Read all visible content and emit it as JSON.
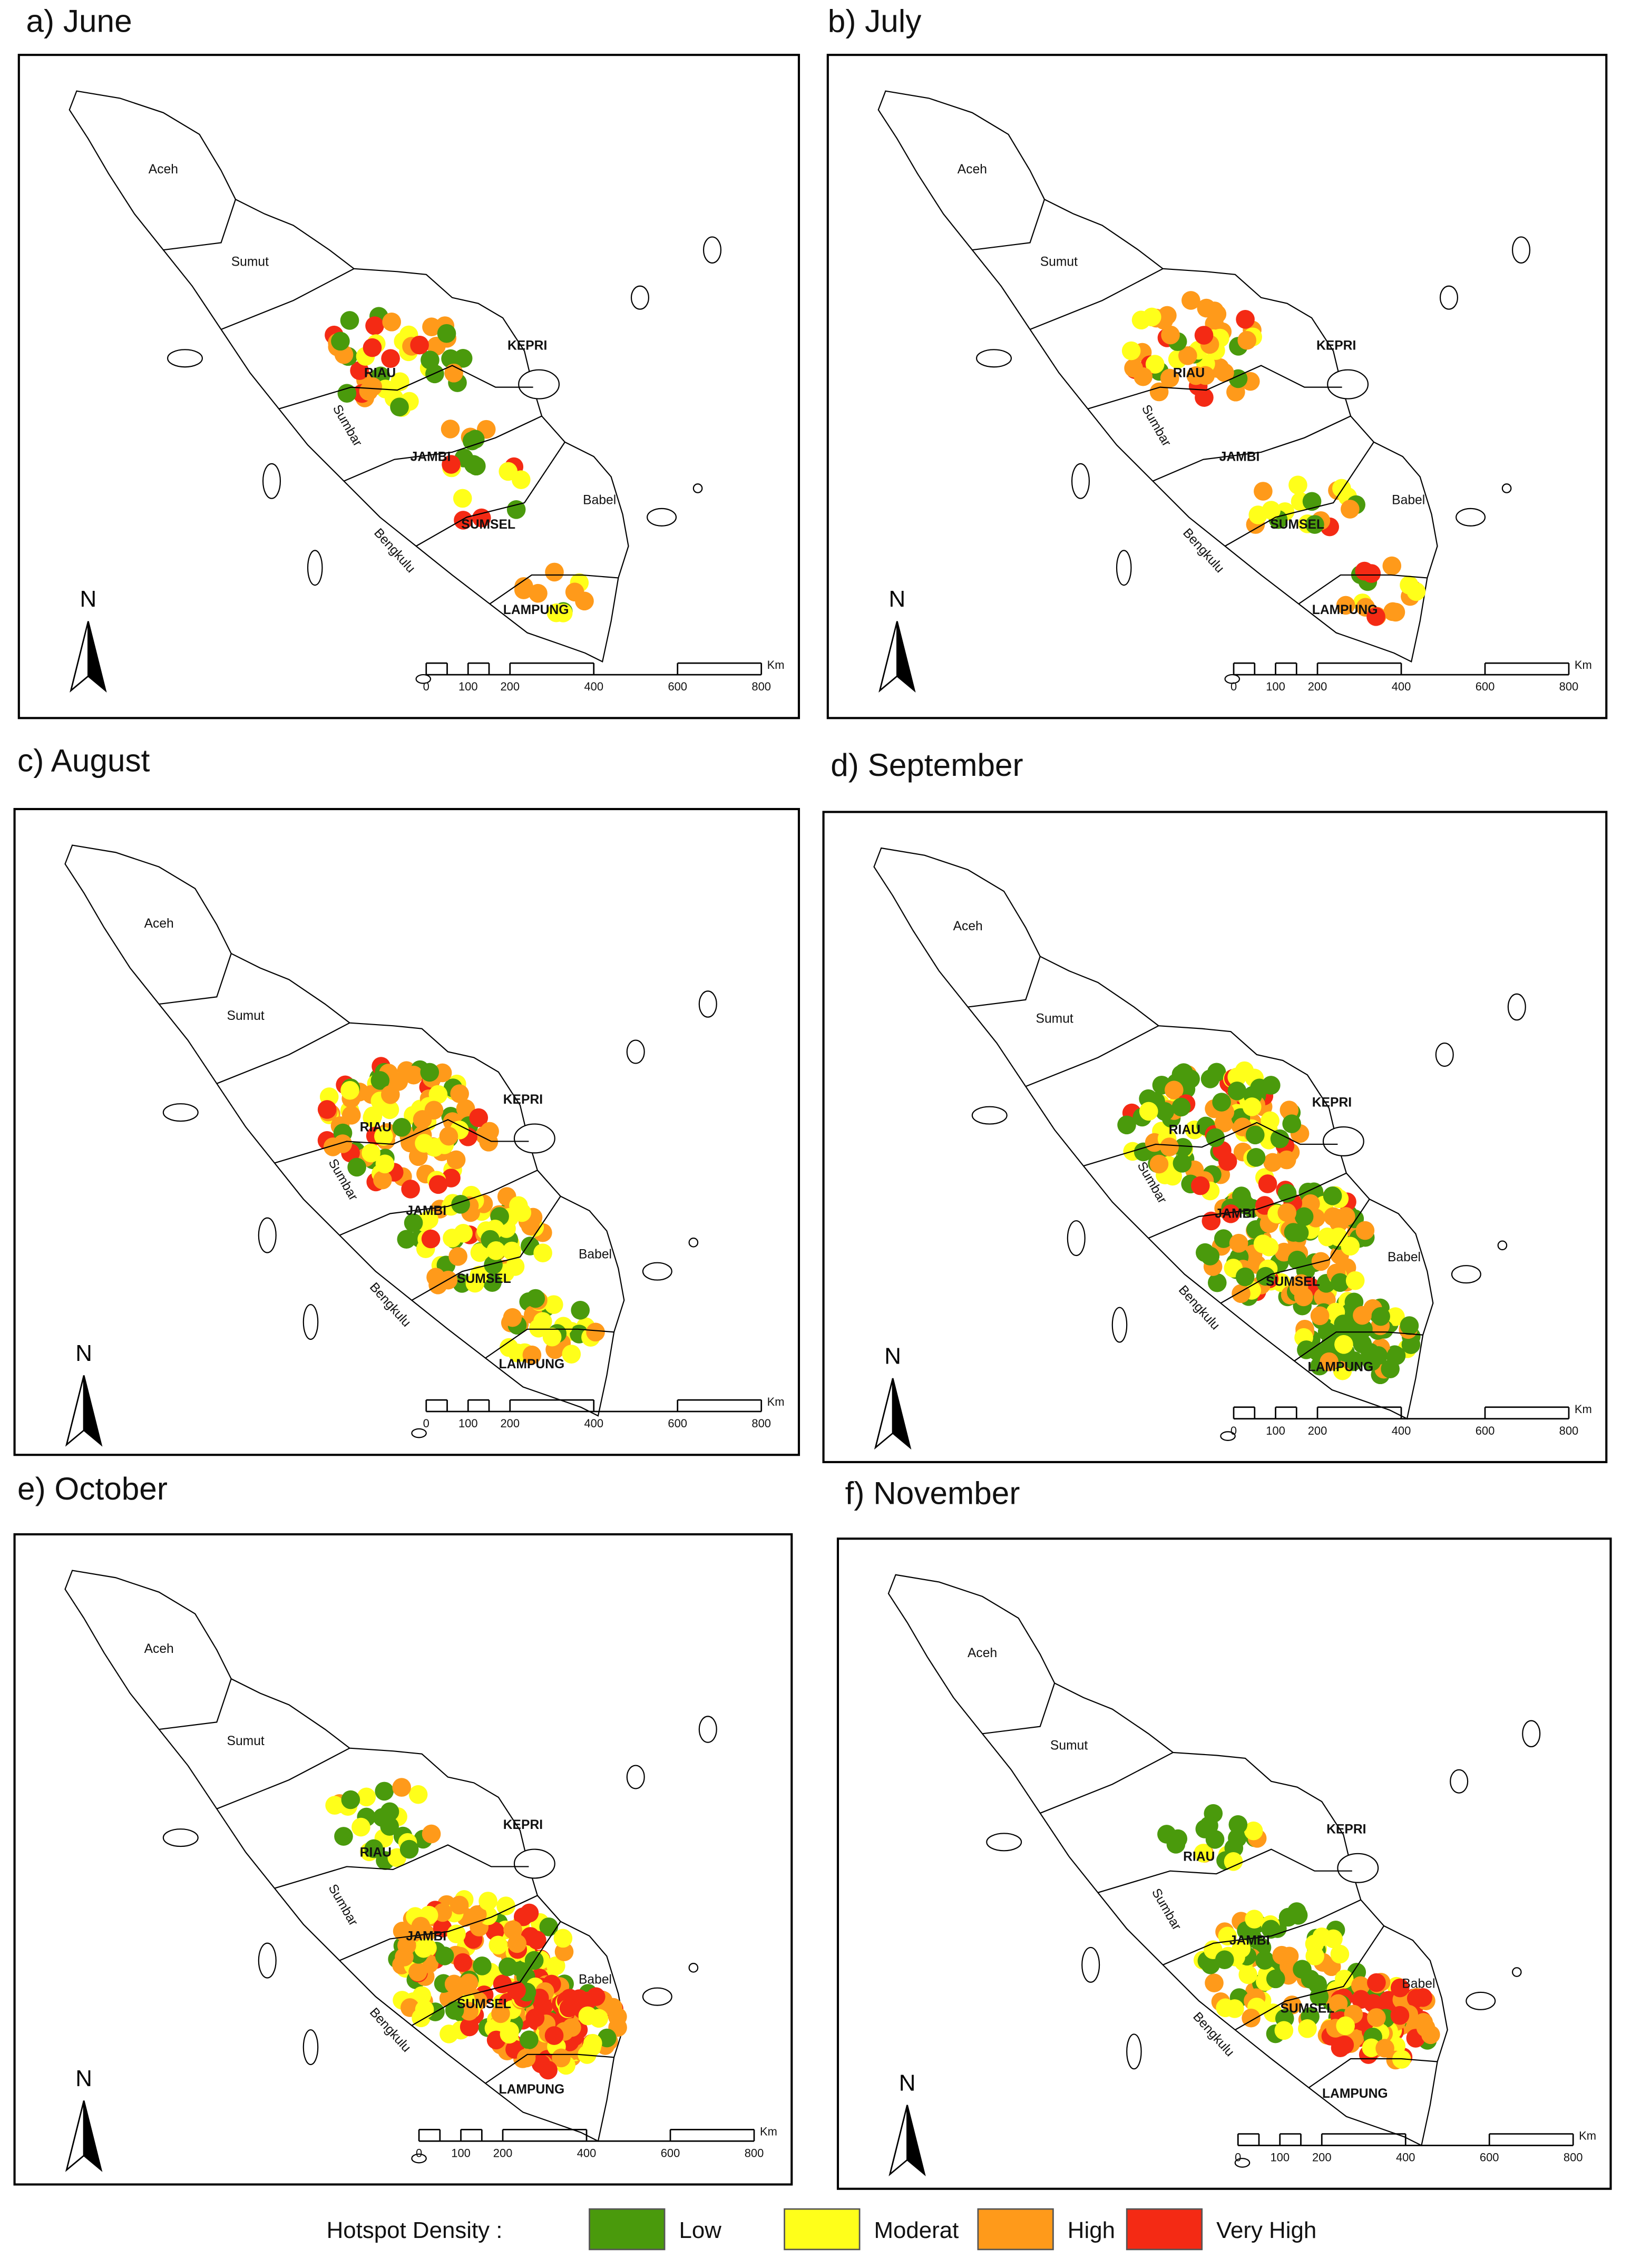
{
  "panels": [
    {
      "title": "a) June"
    },
    {
      "title": "b) July"
    },
    {
      "title": "c) August"
    },
    {
      "title": "d) September"
    },
    {
      "title": "e) October"
    },
    {
      "title": "f) November"
    }
  ],
  "region_labels": [
    "Aceh",
    "Sumut",
    "RIAU",
    "KEPRI",
    "Sumbar",
    "JAMBI",
    "Babel",
    "SUMSEL",
    "Bengkulu",
    "LAMPUNG"
  ],
  "north": "N",
  "scale_bar": {
    "ticks": [
      "0",
      "100",
      "200",
      "400",
      "600",
      "800"
    ],
    "unit": "Km"
  },
  "legend": {
    "title": "Hotspot Density :",
    "items": [
      {
        "label": "Low",
        "color": "#4a9a0c"
      },
      {
        "label": "Moderat",
        "color": "#ffff1a"
      },
      {
        "label": "High",
        "color": "#ff9a1a"
      },
      {
        "label": "Very High",
        "color": "#f42a14"
      }
    ]
  }
}
